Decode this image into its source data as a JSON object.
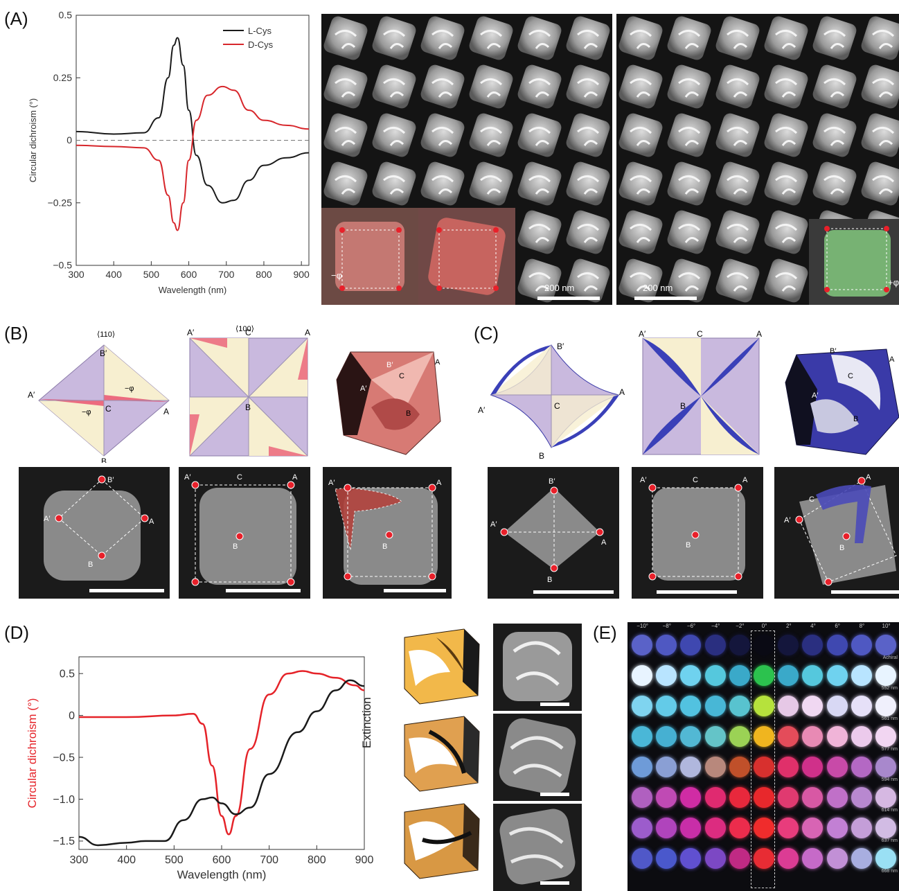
{
  "panels": {
    "A": "(A)",
    "B": "(B)",
    "C": "(C)",
    "D": "(D)",
    "E": "(E)"
  },
  "chart_data": [
    {
      "type": "line",
      "panel": "A",
      "xlabel": "Wavelength (nm)",
      "ylabel": "Circular dichroism (°)",
      "xlim": [
        300,
        920
      ],
      "ylim": [
        -0.5,
        0.5
      ],
      "xticks": [
        "300",
        "400",
        "500",
        "600",
        "700",
        "800",
        "900"
      ],
      "yticks": [
        "0.5",
        "0.25",
        "0",
        "−0.25",
        "−0.5"
      ],
      "legend_position": "top-right",
      "zero_line": true,
      "series": [
        {
          "name": "L-Cys",
          "color": "#1a1a1a",
          "x": [
            300,
            400,
            480,
            520,
            545,
            560,
            570,
            585,
            600,
            620,
            650,
            690,
            720,
            760,
            800,
            860,
            920
          ],
          "y": [
            0.035,
            0.025,
            0.03,
            0.09,
            0.25,
            0.38,
            0.41,
            0.3,
            0.12,
            -0.06,
            -0.18,
            -0.25,
            -0.24,
            -0.16,
            -0.1,
            -0.07,
            -0.05
          ]
        },
        {
          "name": "D-Cys",
          "color": "#d7262b",
          "x": [
            300,
            400,
            480,
            520,
            545,
            560,
            570,
            585,
            600,
            620,
            650,
            690,
            720,
            760,
            800,
            860,
            920
          ],
          "y": [
            -0.02,
            -0.025,
            -0.03,
            -0.08,
            -0.22,
            -0.33,
            -0.36,
            -0.25,
            -0.08,
            0.08,
            0.18,
            0.215,
            0.2,
            0.12,
            0.08,
            0.06,
            0.045
          ]
        }
      ]
    },
    {
      "type": "line",
      "panel": "D",
      "xlabel": "Wavelength (nm)",
      "ylabel": "Circular dichroism (°)",
      "ylabel2": "Extinction",
      "xlim": [
        300,
        900
      ],
      "ylim": [
        -1.6,
        0.7
      ],
      "xticks": [
        "300",
        "400",
        "500",
        "600",
        "700",
        "800",
        "900"
      ],
      "yticks": [
        "0.5",
        "0",
        "−0.5",
        "−1.0",
        "−1.5"
      ],
      "series": [
        {
          "color": "#e52329",
          "x": [
            300,
            400,
            500,
            540,
            560,
            580,
            600,
            615,
            630,
            660,
            700,
            740,
            770,
            800,
            840,
            880,
            900
          ],
          "y": [
            -0.02,
            -0.02,
            0.0,
            0.02,
            -0.1,
            -0.6,
            -1.2,
            -1.42,
            -1.2,
            -0.4,
            0.25,
            0.5,
            0.53,
            0.5,
            0.45,
            0.36,
            0.3
          ]
        },
        {
          "color": "#1a1a1a",
          "x": [
            300,
            340,
            400,
            440,
            480,
            520,
            560,
            580,
            600,
            630,
            660,
            700,
            760,
            800,
            840,
            870,
            900
          ],
          "y": [
            -1.45,
            -1.55,
            -1.52,
            -1.5,
            -1.5,
            -1.25,
            -1.0,
            -0.98,
            -1.05,
            -1.18,
            -1.1,
            -0.7,
            -0.2,
            0.05,
            0.3,
            0.42,
            0.35
          ]
        }
      ]
    }
  ],
  "panelA": {
    "sem_scale_1": "200 nm",
    "sem_scale_2": "200 nm",
    "inset_phi_neg": "−φ",
    "inset_phi_pos": "+φ"
  },
  "panelB": {
    "diag1_title": "⟨110⟩",
    "diag2_title": "⟨100⟩",
    "labels": {
      "A": "A",
      "A_prime": "A′",
      "B": "B",
      "B_prime": "B′",
      "C": "C",
      "neg_phi": "−φ"
    }
  },
  "panelC": {
    "labels": {
      "A": "A",
      "A_prime": "A′",
      "B": "B",
      "B_prime": "B′",
      "C": "C"
    }
  },
  "panelE": {
    "column_headers": [
      "−10°",
      "−8°",
      "−6°",
      "−4°",
      "−2°",
      "0°",
      "2°",
      "4°",
      "6°",
      "8°",
      "10°"
    ],
    "row_labels": [
      "Achiral",
      "552 nm",
      "561 nm",
      "577 nm",
      "594 nm",
      "614 nm",
      "637 nm",
      "668 nm"
    ],
    "colors": [
      [
        "#5a62c8",
        "#4f58c2",
        "#3f48b0",
        "#2a2f80",
        "#14163c",
        "#0a0a14",
        "#14163c",
        "#2a2f80",
        "#3f48b0",
        "#4f58c2",
        "#5a62c8"
      ],
      [
        "#e8f4ff",
        "#b8e4ff",
        "#6fd2ef",
        "#55c8dd",
        "#3aa9c9",
        "#2cc24e",
        "#3aa9c9",
        "#55c8dd",
        "#6fd2ef",
        "#b8e4ff",
        "#e8f4ff"
      ],
      [
        "#7fd4f0",
        "#63cbe8",
        "#52c2e0",
        "#48b7d6",
        "#58c3cf",
        "#b6e23c",
        "#e6c8e6",
        "#f0d8f2",
        "#d8d8f4",
        "#e6e0f8",
        "#f0f0fc"
      ],
      [
        "#4ab7d7",
        "#46b0d2",
        "#52b8d4",
        "#64c4c8",
        "#9bd255",
        "#f0b51f",
        "#e44c5a",
        "#e88ab4",
        "#f0b4d8",
        "#eccaec",
        "#f2d6f2"
      ],
      [
        "#6e9bd8",
        "#8a9fd4",
        "#b0b7dd",
        "#b8887c",
        "#c0502a",
        "#d8302e",
        "#e0306a",
        "#d0308a",
        "#c84aa8",
        "#b468c4",
        "#a888cc"
      ],
      [
        "#b060c0",
        "#c04ab4",
        "#d02ca4",
        "#e02a70",
        "#e8283c",
        "#e8282c",
        "#e03a70",
        "#d858a4",
        "#c070c8",
        "#b888d0",
        "#d6b8e2"
      ],
      [
        "#9c5ccc",
        "#b044bc",
        "#c82ea8",
        "#dc2c80",
        "#ec2c4c",
        "#f02c2c",
        "#e83c7c",
        "#d864b4",
        "#c280d4",
        "#c49ed8",
        "#d2bce4"
      ],
      [
        "#5058c8",
        "#4a58cc",
        "#6050d0",
        "#7c48c4",
        "#c02a84",
        "#e82c34",
        "#dc3c94",
        "#c66ac8",
        "#c290d6",
        "#a8aee0",
        "#9ae0f4"
      ]
    ]
  }
}
